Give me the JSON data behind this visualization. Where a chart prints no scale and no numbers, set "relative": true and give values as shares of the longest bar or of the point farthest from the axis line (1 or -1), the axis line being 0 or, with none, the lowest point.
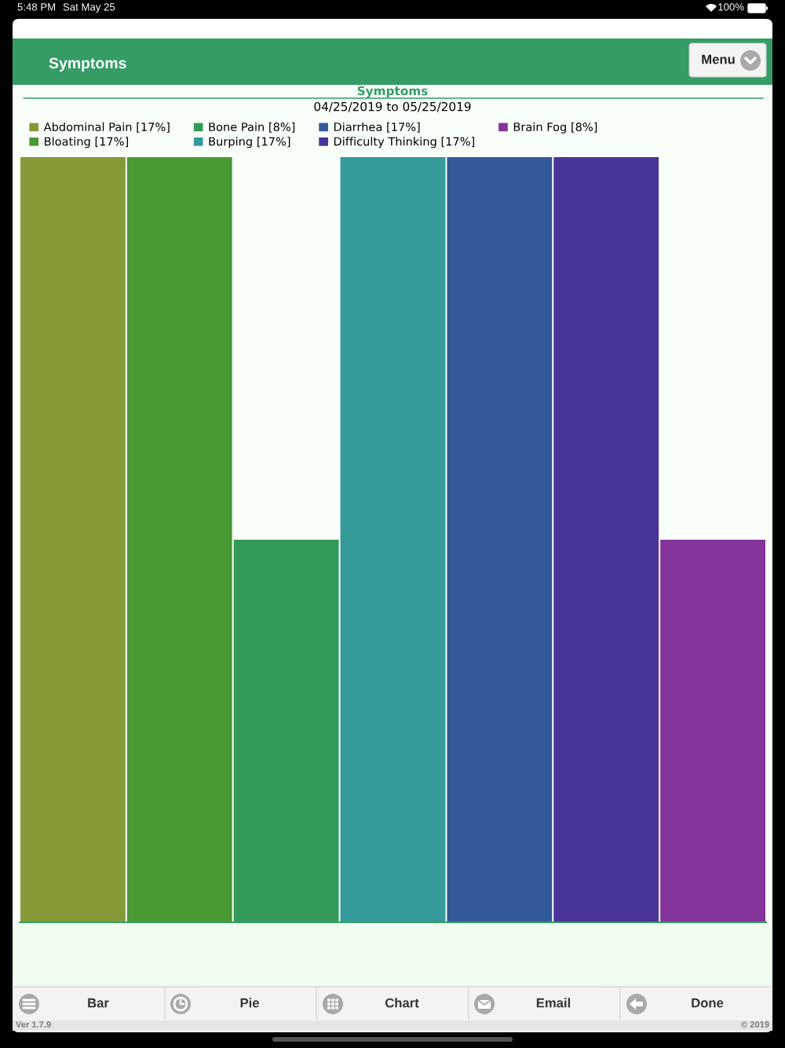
{
  "chart_data": {
    "type": "bar",
    "title": "Symptoms",
    "subtitle": "04/25/2019 to 05/25/2019",
    "categories": [
      null,
      null,
      null,
      null,
      null,
      null,
      null
    ],
    "relative": true,
    "stacked": true,
    "legend": "top left",
    "series": [
      {
        "name": "Abdominal Pain [17%]",
        "color": "#849a36",
        "values": [
          1,
          null,
          null,
          null,
          null,
          null,
          null
        ]
      },
      {
        "name": "Bloating [17%]",
        "color": "#4a9a34",
        "values": [
          null,
          1,
          null,
          null,
          null,
          null,
          null
        ]
      },
      {
        "name": "Bone Pain [8%]",
        "color": "#349a5a",
        "values": [
          null,
          null,
          0.5,
          null,
          null,
          null,
          null
        ]
      },
      {
        "name": "Burping [17%]",
        "color": "#349a9a",
        "values": [
          null,
          null,
          null,
          1,
          null,
          null,
          null
        ]
      },
      {
        "name": "Diarrhea [17%]",
        "color": "#345a9a",
        "values": [
          null,
          null,
          null,
          null,
          1,
          null,
          null
        ]
      },
      {
        "name": "Difficulty Thinking [17%]",
        "color": "#4a349a",
        "values": [
          null,
          null,
          null,
          null,
          null,
          1,
          null
        ]
      },
      {
        "name": "Brain Fog [8%]",
        "color": "#84349a",
        "values": [
          null,
          null,
          null,
          null,
          null,
          null,
          0.5
        ]
      }
    ],
    "annotations": [
      "5:48 PM",
      "Sat May 25",
      "100%",
      "Symptoms",
      "Menu",
      "Bar",
      "Pie",
      "Chart",
      "Email",
      "Done",
      "Ver 1.7.9",
      "© 2019"
    ]
  }
}
